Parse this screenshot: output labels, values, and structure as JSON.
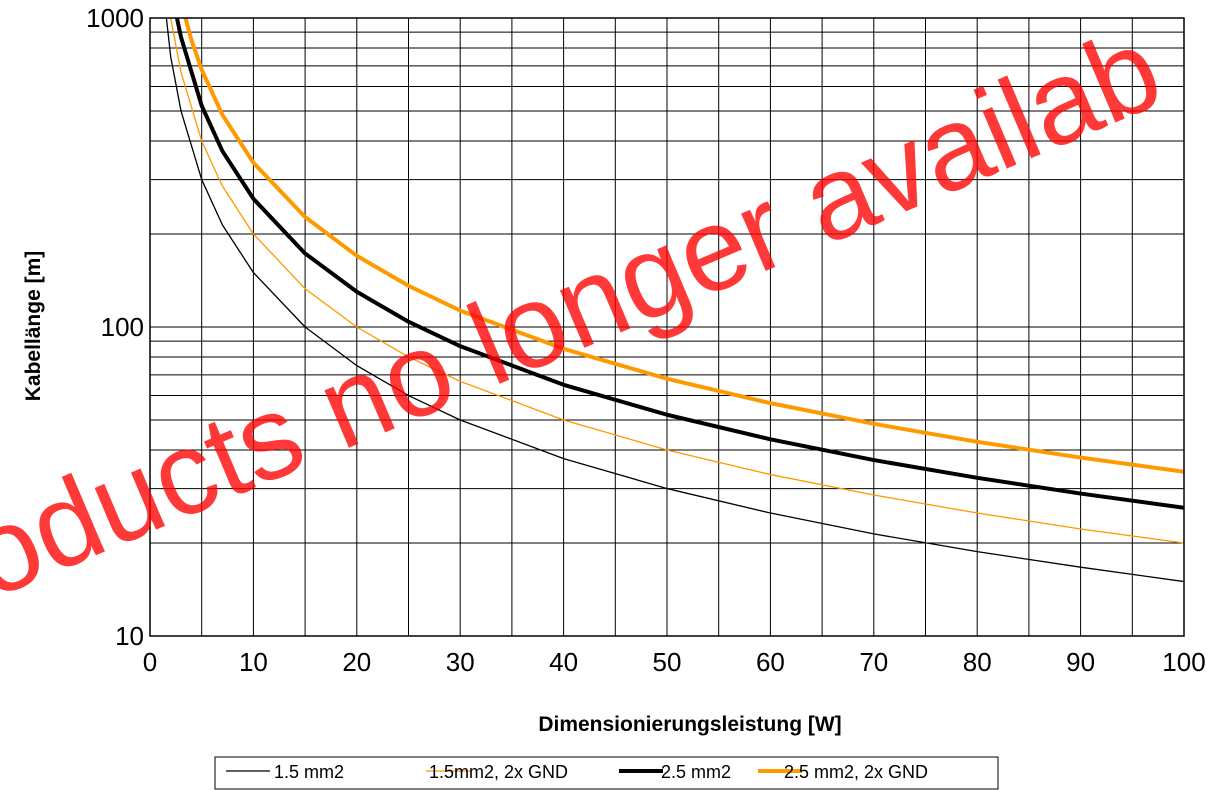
{
  "chart_data": {
    "type": "line",
    "xlabel": "Dimensionierungsleistung [W]",
    "ylabel": "Kabellänge [m]",
    "xlim": [
      0,
      100
    ],
    "ylim": [
      10,
      1000
    ],
    "yscale": "log",
    "grid": true,
    "legend_position": "bottom",
    "x_ticks": [
      "0",
      "10",
      "20",
      "30",
      "40",
      "50",
      "60",
      "70",
      "80",
      "90",
      "100"
    ],
    "y_ticks": [
      "10",
      "100",
      "1000"
    ],
    "series": [
      {
        "name": "1.5 mm2",
        "color": "#000000",
        "width": "thin",
        "points": [
          [
            1,
            1500
          ],
          [
            2,
            750
          ],
          [
            3,
            500
          ],
          [
            5,
            300
          ],
          [
            7,
            214
          ],
          [
            10,
            150
          ],
          [
            15,
            100
          ],
          [
            20,
            75
          ],
          [
            25,
            60
          ],
          [
            30,
            50
          ],
          [
            40,
            37.5
          ],
          [
            50,
            30
          ],
          [
            60,
            25
          ],
          [
            70,
            21.4
          ],
          [
            80,
            18.75
          ],
          [
            90,
            16.7
          ],
          [
            100,
            15
          ]
        ]
      },
      {
        "name": "1.5mm2, 2x GND",
        "color": "#ff9900",
        "width": "thin",
        "points": [
          [
            1,
            2000
          ],
          [
            2,
            1000
          ],
          [
            3,
            667
          ],
          [
            5,
            400
          ],
          [
            7,
            286
          ],
          [
            10,
            200
          ],
          [
            15,
            133
          ],
          [
            20,
            100
          ],
          [
            25,
            80
          ],
          [
            30,
            66.7
          ],
          [
            40,
            50
          ],
          [
            50,
            40
          ],
          [
            60,
            33.3
          ],
          [
            70,
            28.6
          ],
          [
            80,
            25
          ],
          [
            90,
            22.2
          ],
          [
            100,
            20
          ]
        ]
      },
      {
        "name": "2.5 mm2",
        "color": "#000000",
        "width": "thick",
        "points": [
          [
            2.5,
            1040
          ],
          [
            3,
            867
          ],
          [
            5,
            520
          ],
          [
            7,
            371
          ],
          [
            10,
            260
          ],
          [
            15,
            173
          ],
          [
            20,
            130
          ],
          [
            25,
            104
          ],
          [
            30,
            86.7
          ],
          [
            40,
            65
          ],
          [
            50,
            52
          ],
          [
            60,
            43.3
          ],
          [
            70,
            37.1
          ],
          [
            80,
            32.5
          ],
          [
            90,
            28.9
          ],
          [
            100,
            26
          ]
        ]
      },
      {
        "name": "2.5 mm2, 2x GND",
        "color": "#ff9900",
        "width": "thick",
        "points": [
          [
            3,
            1130
          ],
          [
            4,
            850
          ],
          [
            5,
            680
          ],
          [
            7,
            486
          ],
          [
            10,
            340
          ],
          [
            15,
            227
          ],
          [
            20,
            170
          ],
          [
            25,
            136
          ],
          [
            30,
            113
          ],
          [
            40,
            85
          ],
          [
            50,
            68
          ],
          [
            60,
            56.7
          ],
          [
            70,
            48.6
          ],
          [
            80,
            42.5
          ],
          [
            90,
            37.8
          ],
          [
            100,
            34
          ]
        ]
      }
    ]
  },
  "watermark": {
    "text": "roducts no longer availab",
    "color": "#ff0000"
  }
}
